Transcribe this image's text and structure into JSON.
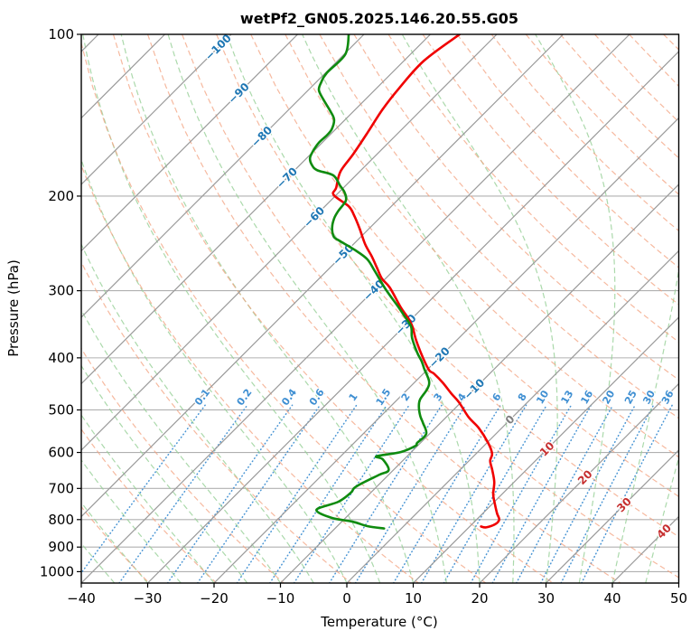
{
  "header": {
    "title": "wetPf2_GN05.2025.146.20.55.G05"
  },
  "chart_data": {
    "type": "line",
    "variant": "skew-t-log-p",
    "title": "wetPf2_GN05.2025.146.20.55.G05",
    "xlabel": "Temperature (°C)",
    "ylabel": "Pressure (hPa)",
    "xlim": [
      -40,
      50
    ],
    "pressure_lim": [
      100,
      1050
    ],
    "x_ticks": [
      -40,
      -30,
      -20,
      -10,
      0,
      10,
      20,
      30,
      40,
      50
    ],
    "y_ticks": [
      100,
      200,
      300,
      400,
      500,
      600,
      700,
      800,
      900,
      1000
    ],
    "grid": true,
    "skew_deg": 45,
    "isotherms": {
      "min": -160,
      "max": 50,
      "step": 10
    },
    "isotherm_label_values": [
      -100,
      -90,
      -80,
      -70,
      -60,
      -50,
      -40,
      -30,
      -20,
      -10,
      0,
      10,
      20,
      30,
      40
    ],
    "label_theta_K": 329,
    "dry_adiabats": {
      "theta_K_min": 230,
      "theta_K_max": 470,
      "step_K": 10
    },
    "moist_adiabats": {
      "start_C_min": -70,
      "start_C_max": 45,
      "step_C": 5
    },
    "mixing_ratio_gkg": [
      "0.1",
      "0.2",
      "0.4",
      "0.6",
      "1",
      "1.5",
      "2",
      "3",
      "4",
      "6",
      "8",
      "10",
      "13",
      "16",
      "20",
      "25",
      "30",
      "36"
    ],
    "mixing_label_pressure": 474,
    "mixing_top_pressure": 490,
    "series": [
      {
        "name": "temperature",
        "color": "#f00000",
        "points_p_t": [
          [
            100,
            -65.6
          ],
          [
            112,
            -67.0
          ],
          [
            126,
            -66.6
          ],
          [
            138,
            -65.9
          ],
          [
            152,
            -64.7
          ],
          [
            167,
            -63.6
          ],
          [
            180,
            -62.9
          ],
          [
            193,
            -61.1
          ],
          [
            199,
            -60.4
          ],
          [
            209,
            -56.4
          ],
          [
            217,
            -54.3
          ],
          [
            230,
            -51.4
          ],
          [
            246,
            -48.2
          ],
          [
            259,
            -45.4
          ],
          [
            272,
            -42.9
          ],
          [
            285,
            -40.5
          ],
          [
            296,
            -38.0
          ],
          [
            322,
            -33.4
          ],
          [
            337,
            -30.7
          ],
          [
            350,
            -28.7
          ],
          [
            371,
            -26.1
          ],
          [
            401,
            -22.3
          ],
          [
            422,
            -19.6
          ],
          [
            428,
            -18.4
          ],
          [
            445,
            -15.7
          ],
          [
            466,
            -12.8
          ],
          [
            484,
            -10.3
          ],
          [
            516,
            -6.6
          ],
          [
            540,
            -3.5
          ],
          [
            576,
            0.2
          ],
          [
            603,
            2.4
          ],
          [
            622,
            3.2
          ],
          [
            647,
            4.9
          ],
          [
            681,
            7.0
          ],
          [
            718,
            8.7
          ],
          [
            750,
            10.5
          ],
          [
            780,
            12.2
          ],
          [
            800,
            13.4
          ],
          [
            816,
            13.5
          ],
          [
            827,
            12.6
          ],
          [
            824,
            11.7
          ]
        ]
      },
      {
        "name": "dewpoint",
        "color": "#0f8b0f",
        "points_p_t": [
          [
            100,
            -82.3
          ],
          [
            109,
            -79.8
          ],
          [
            118,
            -79.8
          ],
          [
            123,
            -79.2
          ],
          [
            127,
            -78.4
          ],
          [
            132,
            -76.4
          ],
          [
            139,
            -73.5
          ],
          [
            144,
            -71.7
          ],
          [
            150,
            -70.6
          ],
          [
            154,
            -70.4
          ],
          [
            159,
            -70.5
          ],
          [
            165,
            -70.1
          ],
          [
            170,
            -69.5
          ],
          [
            175,
            -68.2
          ],
          [
            179,
            -66.6
          ],
          [
            183,
            -63.4
          ],
          [
            191,
            -60.9
          ],
          [
            197,
            -59.1
          ],
          [
            204,
            -57.7
          ],
          [
            213,
            -57.3
          ],
          [
            220,
            -56.8
          ],
          [
            229,
            -55.7
          ],
          [
            238,
            -54.1
          ],
          [
            242,
            -52.7
          ],
          [
            252,
            -48.9
          ],
          [
            262,
            -45.7
          ],
          [
            276,
            -42.7
          ],
          [
            298,
            -38.4
          ],
          [
            320,
            -34.1
          ],
          [
            335,
            -31.4
          ],
          [
            350,
            -28.9
          ],
          [
            367,
            -27.1
          ],
          [
            391,
            -24.1
          ],
          [
            406,
            -22.1
          ],
          [
            420,
            -20.5
          ],
          [
            442,
            -18.0
          ],
          [
            457,
            -17.1
          ],
          [
            478,
            -16.6
          ],
          [
            493,
            -15.7
          ],
          [
            513,
            -14.1
          ],
          [
            529,
            -12.6
          ],
          [
            554,
            -10.5
          ],
          [
            576,
            -10.5
          ],
          [
            583,
            -10.3
          ],
          [
            599,
            -11.6
          ],
          [
            610,
            -14.6
          ],
          [
            618,
            -13.2
          ],
          [
            647,
            -10.7
          ],
          [
            660,
            -11.4
          ],
          [
            686,
            -12.8
          ],
          [
            699,
            -13.2
          ],
          [
            713,
            -13.0
          ],
          [
            741,
            -13.5
          ],
          [
            767,
            -15.6
          ],
          [
            794,
            -12.1
          ],
          [
            807,
            -8.4
          ],
          [
            823,
            -5.4
          ],
          [
            831,
            -2.6
          ]
        ]
      }
    ],
    "colors": {
      "temperature": "#f00000",
      "dewpoint": "#0f8b0f",
      "isotherm": "#9b9b9b",
      "grid": "#b0b0b0",
      "dry_adiabat": "#f3a27f",
      "moist_adiabat": "#96cf96",
      "mixing_ratio": "#3f8fd2",
      "label_negative": "#1f77b4",
      "label_zero": "#7f7f7f",
      "label_positive": "#c62f2f",
      "axis": "#000000"
    },
    "legend": null
  }
}
